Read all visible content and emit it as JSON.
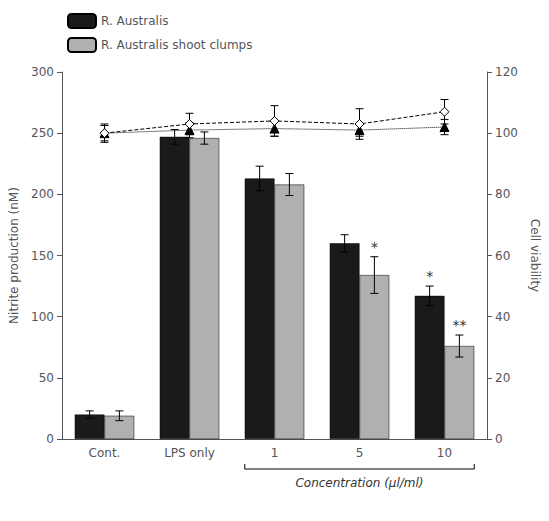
{
  "chart_data": {
    "type": "bar",
    "categories": [
      "Cont.",
      "LPS only",
      "1",
      "5",
      "10"
    ],
    "series": [
      {
        "name": "R. Australis",
        "color": "#1a1a1a",
        "values": [
          20,
          247,
          213,
          160,
          117
        ],
        "errors": [
          3,
          6,
          10,
          7,
          8
        ]
      },
      {
        "name": "R. Australis shoot clumps",
        "color": "#b0b0b0",
        "values": [
          19,
          246,
          208,
          134,
          76
        ],
        "errors": [
          4,
          5,
          9,
          15,
          9
        ]
      },
      {
        "type": "line",
        "axis": "y2",
        "color": "#000000",
        "marker": "triangle",
        "line_style": "dotted",
        "values": [
          100,
          101,
          101.5,
          101,
          102
        ],
        "errors": [
          2.5,
          2.5,
          2.5,
          2,
          2.5
        ]
      },
      {
        "type": "line",
        "axis": "y2",
        "color": "#000000",
        "marker": "open diamond",
        "line_style": "dashed",
        "values": [
          100,
          103,
          104,
          103,
          107
        ],
        "errors": [
          3,
          3.5,
          5,
          5,
          4
        ]
      }
    ],
    "ylabel": "Nitrite production (nM)",
    "y2label": "Cell viability",
    "xlabel": "Concentration (μl/ml)",
    "xlabel_span": [
      "1",
      "10"
    ],
    "ylim": [
      0,
      300
    ],
    "yticks": [
      0,
      50,
      100,
      150,
      200,
      250,
      300
    ],
    "y2lim": [
      0,
      120
    ],
    "y2ticks": [
      0,
      20,
      40,
      60,
      80,
      100,
      120
    ],
    "annotations": [
      {
        "category": "5",
        "series": "R. Australis shoot clumps",
        "text": "*"
      },
      {
        "category": "10",
        "series": "R. Australis",
        "text": "*"
      },
      {
        "category": "10",
        "series": "R. Australis shoot clumps",
        "text": "**"
      }
    ],
    "legend": "top left",
    "grid": false
  }
}
